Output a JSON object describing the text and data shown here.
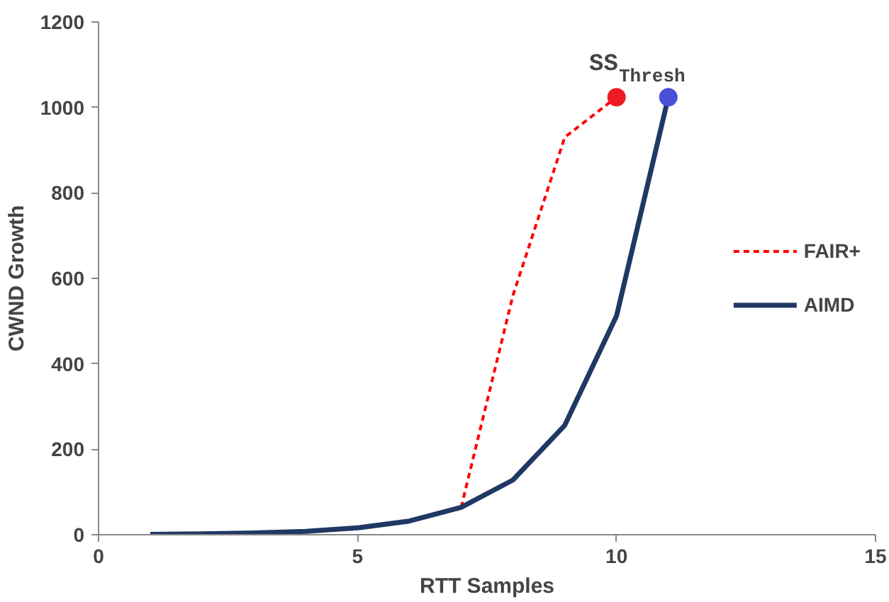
{
  "chart_data": {
    "type": "line",
    "xlabel": "RTT Samples",
    "ylabel": "CWND Growth",
    "xlim": [
      0,
      15
    ],
    "xticks": [
      0,
      5,
      10,
      15
    ],
    "ylim": [
      0,
      1200
    ],
    "yticks": [
      0,
      200,
      400,
      600,
      800,
      1000,
      1200
    ],
    "grid": false,
    "legend": "right",
    "series": [
      {
        "name": "FAIR+",
        "color": "#ff0000",
        "line_style": "dashed",
        "x": [
          7,
          8,
          9,
          10
        ],
        "values": [
          64,
          560,
          930,
          1024
        ]
      },
      {
        "name": "AIMD",
        "color": "#1f3864",
        "line_style": "solid",
        "x": [
          1,
          2,
          3,
          4,
          5,
          6,
          7,
          8,
          9,
          10,
          11
        ],
        "values": [
          1,
          2,
          4,
          8,
          16,
          32,
          64,
          128,
          256,
          512,
          1024
        ]
      },
      {
        "type": "scatter",
        "marker": "circle",
        "color": "#ee1c24",
        "x": [
          10
        ],
        "values": [
          1024
        ]
      },
      {
        "type": "scatter",
        "marker": "circle",
        "color": "#4a4fd8",
        "x": [
          11
        ],
        "values": [
          1024
        ]
      }
    ],
    "annotations": [
      "SS$_{Thresh}$"
    ]
  }
}
